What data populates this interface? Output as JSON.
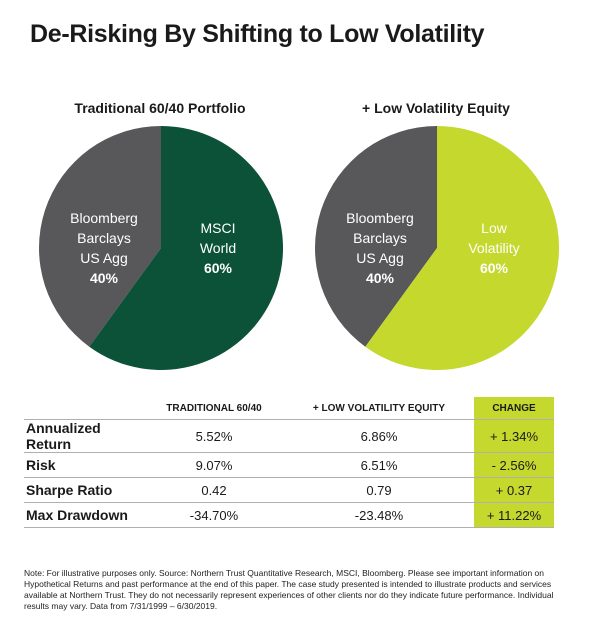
{
  "title": "De-Risking By Shifting to Low Volatility",
  "chart_data": [
    {
      "type": "pie",
      "title": "Traditional 60/40 Portfolio",
      "slices": [
        {
          "label_lines": [
            "Bloomberg",
            "Barclays",
            "US Agg"
          ],
          "value": 40,
          "display": "40%",
          "color": "#58585a"
        },
        {
          "label_lines": [
            "MSCI",
            "World"
          ],
          "value": 60,
          "display": "60%",
          "color": "#0b5239"
        }
      ]
    },
    {
      "type": "pie",
      "title": "+ Low Volatility Equity",
      "slices": [
        {
          "label_lines": [
            "Bloomberg",
            "Barclays",
            "US Agg"
          ],
          "value": 40,
          "display": "40%",
          "color": "#58585a"
        },
        {
          "label_lines": [
            "Low",
            "Volatility"
          ],
          "value": 60,
          "display": "60%",
          "color": "#c4d82e"
        }
      ]
    },
    {
      "type": "table",
      "columns": [
        "",
        "TRADITIONAL 60/40",
        "+ LOW VOLATILITY EQUITY",
        "CHANGE"
      ],
      "rows": [
        {
          "label": "Annualized Return",
          "traditional": "5.52%",
          "low_vol": "6.86%",
          "change": "+ 1.34%"
        },
        {
          "label": "Risk",
          "traditional": "9.07%",
          "low_vol": "6.51%",
          "change": "- 2.56%"
        },
        {
          "label": "Sharpe Ratio",
          "traditional": "0.42",
          "low_vol": "0.79",
          "change": "+ 0.37"
        },
        {
          "label": "Max Drawdown",
          "traditional": "-34.70%",
          "low_vol": "-23.48%",
          "change": "+ 11.22%"
        }
      ]
    }
  ],
  "note": "Note: For illustrative purposes only. Source: Northern Trust Quantitative Research, MSCI, Bloomberg. Please see important information on Hypothetical Returns and past performance at the end of this paper. The case study presented is intended to illustrate products and services available at Northern Trust. They do not necessarily represent experiences of other clients nor do they indicate future performance. Individual results may vary. Data from 7/31/1999 – 6/30/2019.",
  "colors": {
    "accent": "#c4d82e",
    "dark_green": "#0b5239",
    "gray": "#58585a"
  }
}
